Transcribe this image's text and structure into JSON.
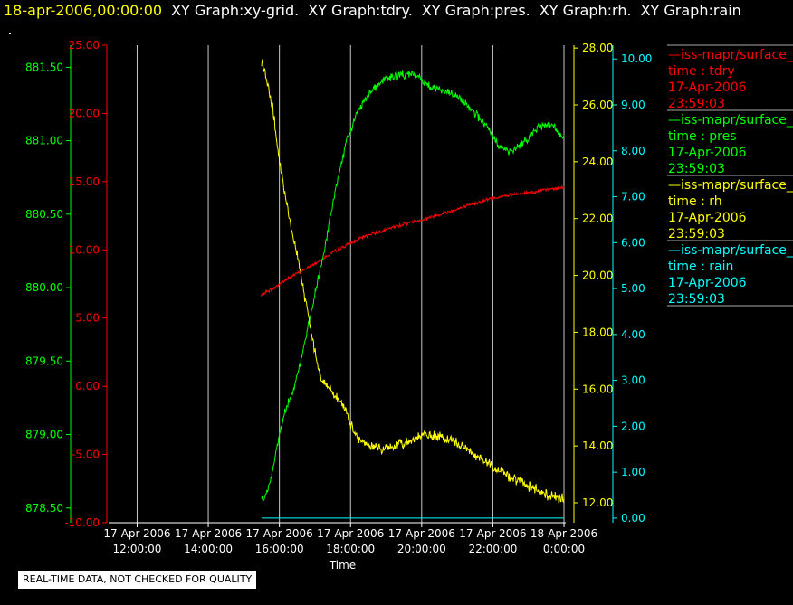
{
  "header": {
    "time": "18-apr-2006,00:00:00",
    "graphs": [
      "XY Graph:xy-grid.",
      "XY Graph:tdry.",
      "XY Graph:pres.",
      "XY Graph:rh.",
      "XY Graph:rain"
    ]
  },
  "disclaimer": "REAL-TIME DATA, NOT CHECKED FOR QUALITY",
  "colors": {
    "tdry": "#ff0000",
    "pres": "#00ff00",
    "rh": "#ffff00",
    "rain": "#00ffff",
    "grid": "#c8c8c8",
    "background": "#000000"
  },
  "legend": [
    {
      "name": "—iss-mapr/surface_m",
      "field": "time : tdry",
      "date": "17-Apr-2006",
      "time": "23:59:03",
      "color": "#ff0000"
    },
    {
      "name": "—iss-mapr/surface_m",
      "field": "time : pres",
      "date": "17-Apr-2006",
      "time": "23:59:03",
      "color": "#00ff00"
    },
    {
      "name": "—iss-mapr/surface_m",
      "field": "time : rh",
      "date": "17-Apr-2006",
      "time": "23:59:03",
      "color": "#ffff00"
    },
    {
      "name": "—iss-mapr/surface_m",
      "field": "time : rain",
      "date": "17-Apr-2006",
      "time": "23:59:03",
      "color": "#00ffff"
    }
  ],
  "chart_data": {
    "type": "line",
    "xlabel": "Time",
    "x_ticks": [
      {
        "hour": 12,
        "line1": "17-Apr-2006",
        "line2": "12:00:00"
      },
      {
        "hour": 14,
        "line1": "17-Apr-2006",
        "line2": "14:00:00"
      },
      {
        "hour": 16,
        "line1": "17-Apr-2006",
        "line2": "16:00:00"
      },
      {
        "hour": 18,
        "line1": "17-Apr-2006",
        "line2": "18:00:00"
      },
      {
        "hour": 20,
        "line1": "17-Apr-2006",
        "line2": "20:00:00"
      },
      {
        "hour": 22,
        "line1": "17-Apr-2006",
        "line2": "22:00:00"
      },
      {
        "hour": 24,
        "line1": "18-Apr-2006",
        "line2": "0:00:00"
      }
    ],
    "xlim_hours": [
      11.25,
      24
    ],
    "grid": "vertical",
    "axes": {
      "pres": {
        "ylim": [
          878.4,
          881.65
        ],
        "ticks": [
          "878.50",
          "879.00",
          "879.50",
          "880.00",
          "880.50",
          "881.00",
          "881.50"
        ]
      },
      "tdry": {
        "ylim": [
          -10,
          25
        ],
        "ticks": [
          "-10.00",
          "-5.00",
          "0.00",
          "5.00",
          "10.00",
          "15.00",
          "20.00",
          "25.00"
        ]
      },
      "rh": {
        "ylim": [
          11.3,
          28.1
        ],
        "ticks": [
          "12.00",
          "14.00",
          "16.00",
          "18.00",
          "20.00",
          "22.00",
          "24.00",
          "26.00",
          "28.00"
        ]
      },
      "rain": {
        "ylim": [
          -0.1,
          10.3
        ],
        "ticks": [
          "0.00",
          "1.00",
          "2.00",
          "3.00",
          "4.00",
          "5.00",
          "6.00",
          "7.00",
          "8.00",
          "9.00",
          "10.00"
        ]
      }
    },
    "series": [
      {
        "key": "tdry",
        "axis": "tdry",
        "noise": 0.15,
        "points": [
          [
            15.48,
            6.6
          ],
          [
            15.6,
            6.9
          ],
          [
            15.8,
            7.1
          ],
          [
            16.0,
            7.5
          ],
          [
            16.3,
            8.0
          ],
          [
            16.6,
            8.4
          ],
          [
            17.0,
            9.0
          ],
          [
            17.5,
            9.8
          ],
          [
            18.0,
            10.5
          ],
          [
            18.5,
            11.1
          ],
          [
            19.0,
            11.5
          ],
          [
            19.5,
            11.9
          ],
          [
            20.0,
            12.2
          ],
          [
            20.5,
            12.6
          ],
          [
            21.0,
            13.0
          ],
          [
            21.5,
            13.4
          ],
          [
            22.0,
            13.8
          ],
          [
            22.5,
            14.0
          ],
          [
            23.0,
            14.2
          ],
          [
            23.5,
            14.4
          ],
          [
            24.0,
            14.6
          ]
        ]
      },
      {
        "key": "pres",
        "axis": "pres",
        "noise": 0.035,
        "points": [
          [
            15.5,
            878.55
          ],
          [
            15.65,
            878.6
          ],
          [
            15.8,
            878.75
          ],
          [
            16.0,
            879.0
          ],
          [
            16.2,
            879.2
          ],
          [
            16.4,
            879.3
          ],
          [
            16.6,
            879.5
          ],
          [
            16.8,
            879.72
          ],
          [
            17.0,
            879.95
          ],
          [
            17.3,
            880.3
          ],
          [
            17.6,
            880.7
          ],
          [
            17.9,
            881.0
          ],
          [
            18.2,
            881.2
          ],
          [
            18.6,
            881.35
          ],
          [
            19.0,
            881.42
          ],
          [
            19.4,
            881.45
          ],
          [
            19.8,
            881.45
          ],
          [
            20.2,
            881.38
          ],
          [
            20.6,
            881.34
          ],
          [
            21.0,
            881.3
          ],
          [
            21.4,
            881.22
          ],
          [
            21.8,
            881.1
          ],
          [
            22.2,
            880.96
          ],
          [
            22.5,
            880.92
          ],
          [
            22.7,
            880.96
          ],
          [
            23.0,
            881.02
          ],
          [
            23.3,
            881.1
          ],
          [
            23.6,
            881.12
          ],
          [
            24.0,
            881.02
          ]
        ]
      },
      {
        "key": "rh",
        "axis": "rh",
        "noise": 0.22,
        "points": [
          [
            15.5,
            27.5
          ],
          [
            15.6,
            27.1
          ],
          [
            15.8,
            26.0
          ],
          [
            16.0,
            24.0
          ],
          [
            16.2,
            22.5
          ],
          [
            16.4,
            21.3
          ],
          [
            16.6,
            20.0
          ],
          [
            16.8,
            18.7
          ],
          [
            17.0,
            17.3
          ],
          [
            17.2,
            16.3
          ],
          [
            17.5,
            15.9
          ],
          [
            17.8,
            15.4
          ],
          [
            18.0,
            14.8
          ],
          [
            18.2,
            14.3
          ],
          [
            18.5,
            14.0
          ],
          [
            19.0,
            13.9
          ],
          [
            19.5,
            14.1
          ],
          [
            20.0,
            14.4
          ],
          [
            20.5,
            14.3
          ],
          [
            21.0,
            14.1
          ],
          [
            21.5,
            13.7
          ],
          [
            22.0,
            13.3
          ],
          [
            22.5,
            12.9
          ],
          [
            23.0,
            12.6
          ],
          [
            23.5,
            12.3
          ],
          [
            24.0,
            12.1
          ]
        ]
      },
      {
        "key": "rain",
        "axis": "rain",
        "noise": 0,
        "points": [
          [
            15.5,
            0.0
          ],
          [
            24.0,
            0.0
          ]
        ]
      }
    ]
  }
}
